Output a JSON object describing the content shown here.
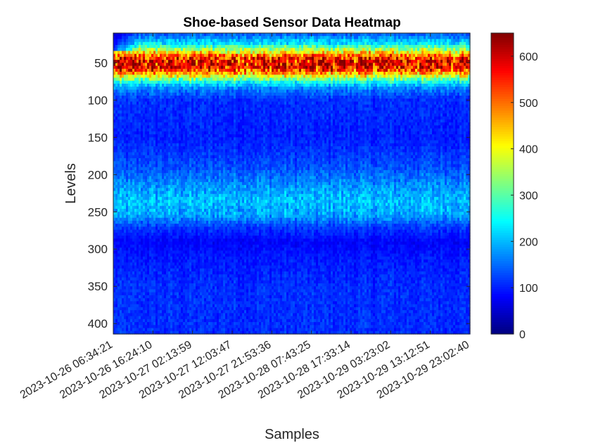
{
  "chart_data": {
    "type": "heatmap",
    "title": "Shoe-based Sensor Data Heatmap",
    "xlabel": "Samples",
    "ylabel": "Levels",
    "x_tick_labels": [
      "2023-10-26 06:34:21",
      "2023-10-26 16:24:10",
      "2023-10-27 02:13:59",
      "2023-10-27 12:03:47",
      "2023-10-27 21:53:36",
      "2023-10-28 07:43:25",
      "2023-10-28 17:33:14",
      "2023-10-29 03:23:02",
      "2023-10-29 13:12:51",
      "2023-10-29 23:02:40"
    ],
    "y_ticks": [
      50,
      100,
      150,
      200,
      250,
      300,
      350,
      400
    ],
    "ylim": [
      10,
      414
    ],
    "y_reversed": true,
    "colorbar": {
      "ticks": [
        0,
        100,
        200,
        300,
        400,
        500,
        600
      ],
      "range": [
        0,
        650
      ],
      "colormap": "jet"
    },
    "level_profile": [
      {
        "level": 10,
        "value": 130
      },
      {
        "level": 25,
        "value": 240
      },
      {
        "level": 35,
        "value": 400
      },
      {
        "level": 42,
        "value": 530
      },
      {
        "level": 50,
        "value": 590
      },
      {
        "level": 58,
        "value": 560
      },
      {
        "level": 66,
        "value": 420
      },
      {
        "level": 75,
        "value": 260
      },
      {
        "level": 85,
        "value": 160
      },
      {
        "level": 100,
        "value": 110
      },
      {
        "level": 150,
        "value": 100
      },
      {
        "level": 190,
        "value": 130
      },
      {
        "level": 215,
        "value": 175
      },
      {
        "level": 235,
        "value": 205
      },
      {
        "level": 255,
        "value": 185
      },
      {
        "level": 270,
        "value": 120
      },
      {
        "level": 290,
        "value": 80
      },
      {
        "level": 310,
        "value": 95
      },
      {
        "level": 350,
        "value": 110
      },
      {
        "level": 414,
        "value": 110
      }
    ]
  }
}
